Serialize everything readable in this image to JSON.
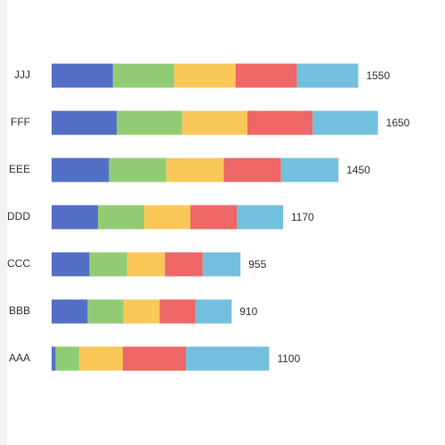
{
  "chart_data": {
    "type": "stacked-bar-horizontal",
    "categories": [
      "AAA",
      "BBB",
      "CCC",
      "DDD",
      "EEE",
      "FFF",
      "JJJ"
    ],
    "series": [
      {
        "color": "#5470c6",
        "values": [
          20,
          182,
          191,
          234,
          290,
          330,
          310
        ]
      },
      {
        "color": "#91cc75",
        "values": [
          120,
          182,
          191,
          234,
          290,
          330,
          310
        ]
      },
      {
        "color": "#fac858",
        "values": [
          220,
          182,
          191,
          234,
          290,
          330,
          310
        ]
      },
      {
        "color": "#ee6666",
        "values": [
          320,
          182,
          191,
          234,
          290,
          330,
          310
        ]
      },
      {
        "color": "#73c0de",
        "values": [
          420,
          182,
          191,
          234,
          290,
          330,
          310
        ]
      }
    ],
    "totals": [
      1100,
      910,
      955,
      1170,
      1450,
      1650,
      1550
    ],
    "xlim": [
      0,
      1800
    ]
  }
}
